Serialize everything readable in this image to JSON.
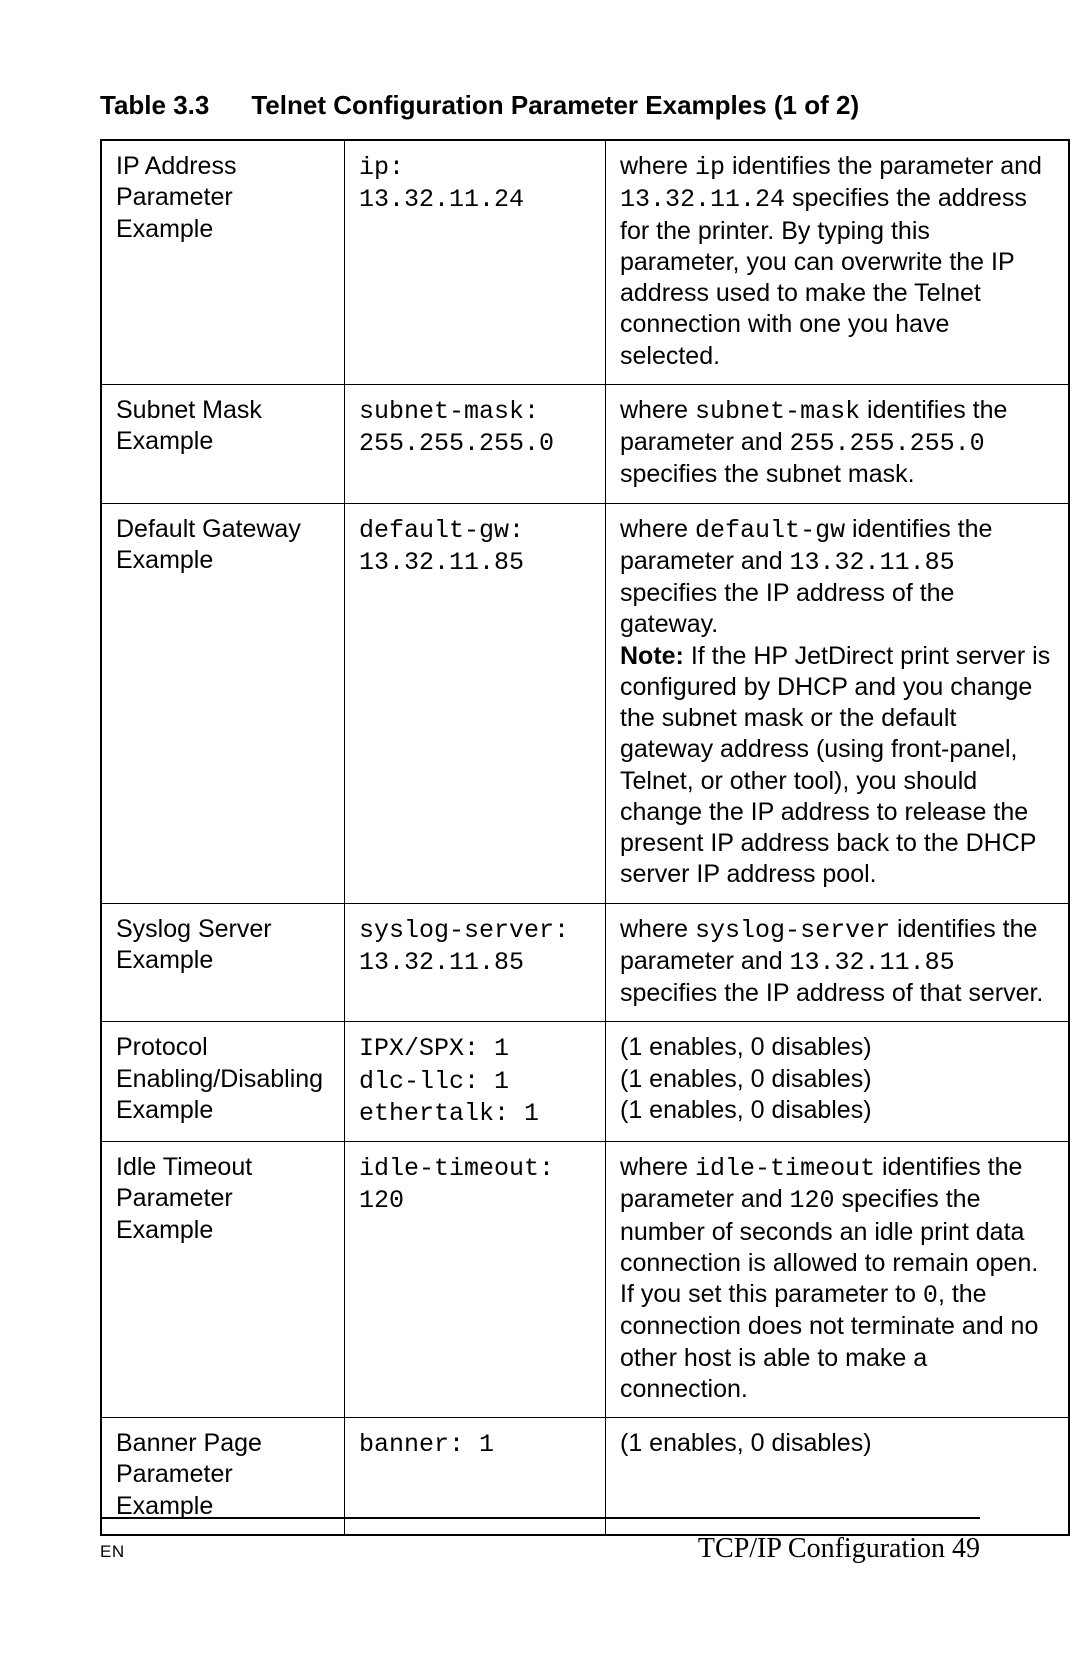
{
  "caption_number": "Table 3.3",
  "caption_title": "Telnet Configuration Parameter Examples (1 of 2)",
  "footer_lang": "EN",
  "footer_title": "TCP/IP Configuration 49",
  "rows": [
    {
      "name": "IP Address Parameter Example",
      "cmd_lines": [
        "ip:",
        "13.32.11.24"
      ],
      "desc_segments": [
        {
          "t": "where "
        },
        {
          "t": "ip",
          "mono": true
        },
        {
          "t": " identifies the parameter and "
        },
        {
          "t": "13.32.11.24",
          "mono": true
        },
        {
          "t": " specifies the address for the printer. By typing this parameter, you can overwrite the IP address used to make the Telnet connection with one you have selected."
        }
      ]
    },
    {
      "name": "Subnet Mask Example",
      "cmd_lines": [
        "subnet-mask:",
        "255.255.255.0"
      ],
      "desc_segments": [
        {
          "t": "where "
        },
        {
          "t": "subnet-mask",
          "mono": true
        },
        {
          "t": " identifies the parameter and "
        },
        {
          "t": "255.255.255.0",
          "mono": true
        },
        {
          "t": " specifies the subnet mask."
        }
      ]
    },
    {
      "name": "Default Gateway Example",
      "cmd_lines": [
        "default-gw:",
        "13.32.11.85"
      ],
      "desc_segments": [
        {
          "t": "where "
        },
        {
          "t": "default-gw",
          "mono": true
        },
        {
          "t": " identifies the parameter and "
        },
        {
          "t": "13.32.11.85",
          "mono": true
        },
        {
          "t": " specifies the IP address of the gateway."
        },
        {
          "br": true
        },
        {
          "t": "Note:",
          "bold": true
        },
        {
          "t": " If the HP JetDirect print server is configured by DHCP and you change the subnet mask or the default gateway address (using front-panel, Telnet, or other tool), you should change the IP address to release the present IP address back to the DHCP server IP address pool."
        }
      ]
    },
    {
      "name": "Syslog Server Example",
      "cmd_lines": [
        "syslog-server:",
        "13.32.11.85"
      ],
      "desc_segments": [
        {
          "t": "where "
        },
        {
          "t": "syslog-server",
          "mono": true
        },
        {
          "t": " identifies the parameter and "
        },
        {
          "t": "13.32.11.85",
          "mono": true
        },
        {
          "t": " specifies the IP address of that server."
        }
      ]
    },
    {
      "name": "Protocol Enabling/Disabling Example",
      "cmd_lines": [
        "IPX/SPX: 1",
        "dlc-llc: 1",
        "ethertalk: 1"
      ],
      "desc_segments": [
        {
          "t": "(1 enables, 0 disables)"
        },
        {
          "br": true
        },
        {
          "t": "(1 enables, 0 disables)"
        },
        {
          "br": true
        },
        {
          "t": "(1 enables, 0 disables)"
        }
      ]
    },
    {
      "name": "Idle Timeout Parameter Example",
      "cmd_lines": [
        "idle-timeout:",
        "120"
      ],
      "desc_segments": [
        {
          "t": "where "
        },
        {
          "t": "idle-timeout",
          "mono": true
        },
        {
          "t": " identifies the parameter and "
        },
        {
          "t": "120",
          "mono": true
        },
        {
          "t": " specifies the number of seconds an idle print data connection is allowed to remain open. If you set this parameter to "
        },
        {
          "t": "0",
          "mono": true
        },
        {
          "t": ", the connection does not terminate and no other host is able to make a connection."
        }
      ]
    },
    {
      "name": "Banner Page Parameter Example",
      "cmd_lines": [
        "banner: 1"
      ],
      "desc_segments": [
        {
          "t": "(1 enables, 0 disables)"
        }
      ]
    }
  ]
}
